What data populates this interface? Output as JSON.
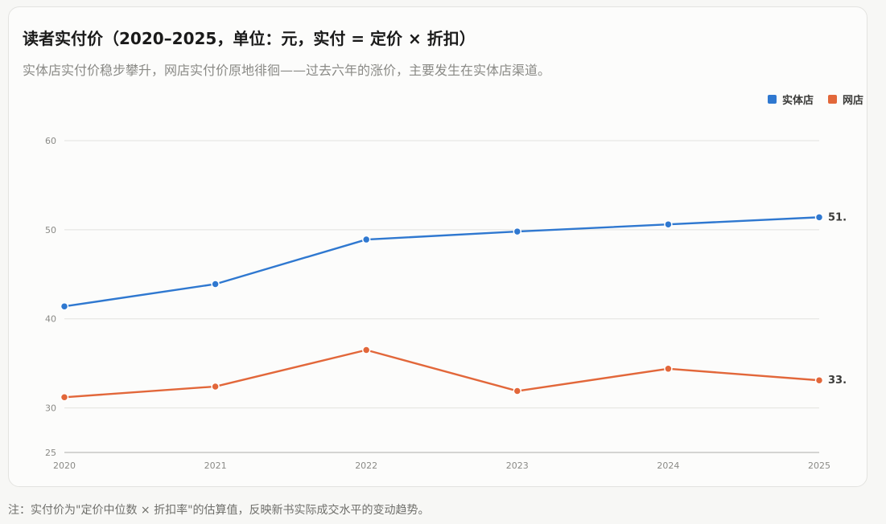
{
  "title": "读者实付价（2020–2025，单位：元，实付 = 定价 × 折扣）",
  "subtitle": "实体店实付价稳步攀升，网店实付价原地徘徊——过去六年的涨价，主要发生在实体店渠道。",
  "note": "注：实付价为\"定价中位数 × 折扣率\"的估算值，反映新书实际成交水平的变动趋势。",
  "colors": {
    "series_store": "#2f78d0",
    "series_online": "#e2673a",
    "grid": "#e2e2df",
    "axis_text": "#8a8a86"
  },
  "chart_data": {
    "type": "line",
    "title": "读者实付价（2020–2025，单位：元，实付 = 定价 × 折扣）",
    "x": [
      "2020",
      "2021",
      "2022",
      "2023",
      "2024",
      "2025"
    ],
    "ylim": [
      25,
      60
    ],
    "yticks": [
      25,
      30,
      40,
      50,
      60
    ],
    "grid": true,
    "legend_position": "top-right",
    "series": [
      {
        "name": "实体店",
        "color": "#2f78d0",
        "values": [
          41.4,
          43.9,
          48.9,
          49.8,
          50.6,
          51.4
        ],
        "end_label": "51."
      },
      {
        "name": "网店",
        "color": "#e2673a",
        "values": [
          31.2,
          32.4,
          36.5,
          31.9,
          34.4,
          33.1
        ],
        "end_label": "33."
      }
    ]
  }
}
